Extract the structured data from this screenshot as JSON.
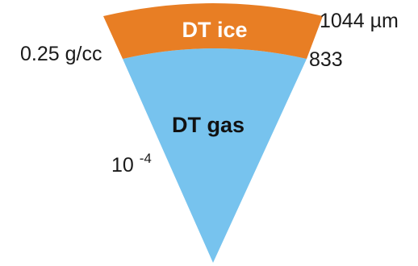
{
  "diagram": {
    "colors": {
      "ice": "#E87E24",
      "gas": "#77C3EE"
    },
    "layers": {
      "ice": {
        "label": "DT ice"
      },
      "gas": {
        "label": "DT gas"
      }
    },
    "labels": {
      "outer_radius_value": "1044",
      "outer_radius_unit": "µm",
      "inner_radius": "833",
      "ice_density": "0.25 g/cc",
      "gas_density_base": "10",
      "gas_density_exponent": "-4"
    }
  }
}
